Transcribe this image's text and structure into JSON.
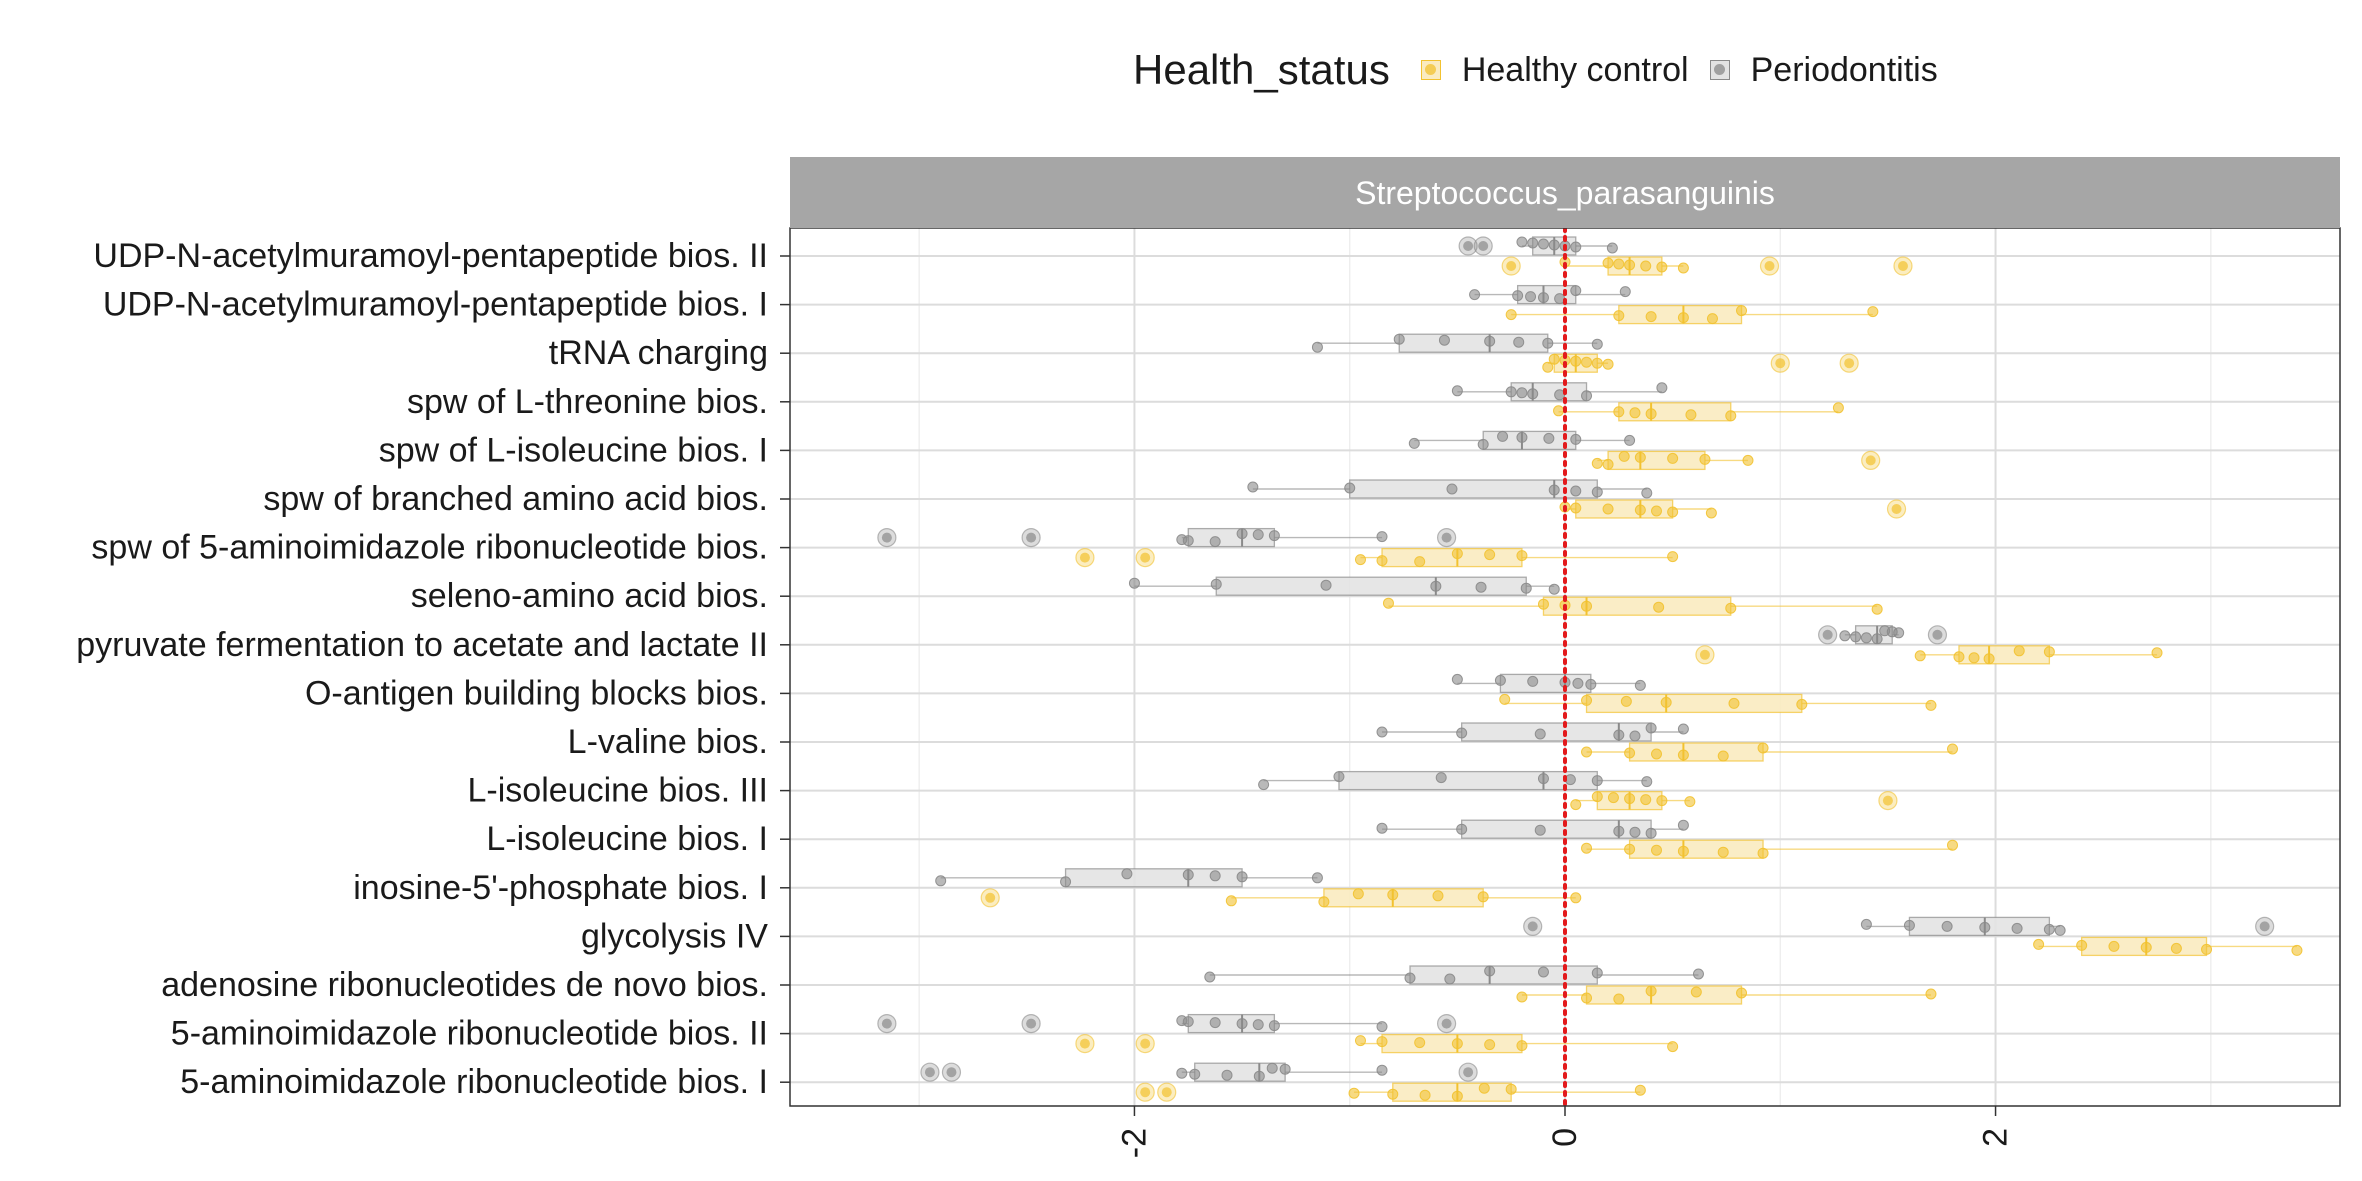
{
  "legend": {
    "title": "Health_status",
    "items": [
      {
        "label": "Healthy control",
        "color": "#F2C230",
        "box_fill": "#FAEBC0"
      },
      {
        "label": "Periodontitis",
        "color": "#8A8A8A",
        "box_fill": "#E3E3E3"
      }
    ]
  },
  "chart_data": {
    "type": "boxplot",
    "facet_title": "Streptococcus_parasanguinis",
    "xlim": [
      -3.6,
      3.6
    ],
    "x_ticks": [
      -2,
      0,
      2
    ],
    "x_tick_labels": [
      "-2",
      "0",
      "2"
    ],
    "reference_line": {
      "x": 0,
      "color": "#E31A1C",
      "style": "dotted"
    },
    "grid": true,
    "categories": [
      "UDP-N-acetylmuramoyl-pentapeptide bios. II",
      "UDP-N-acetylmuramoyl-pentapeptide bios. I",
      "tRNA charging",
      "spw of L-threonine bios.",
      "spw of L-isoleucine bios. I",
      "spw of branched amino acid bios.",
      "spw of 5-aminoimidazole ribonucleotide bios.",
      "seleno-amino acid bios.",
      "pyruvate fermentation to acetate and lactate II",
      "O-antigen building blocks bios.",
      "L-valine bios.",
      "L-isoleucine bios. III",
      "L-isoleucine bios. I",
      "inosine-5'-phosphate bios. I",
      "glycolysis IV",
      "adenosine ribonucleotides de novo bios.",
      "5-aminoimidazole ribonucleotide bios. II",
      "5-aminoimidazole ribonucleotide bios. I"
    ],
    "series": [
      {
        "name": "Healthy control",
        "boxes": [
          {
            "whisker_low": 0.0,
            "q1": 0.2,
            "median": 0.3,
            "q3": 0.45,
            "whisker_high": 0.55,
            "outliers": [
              -0.25,
              0.95,
              1.57
            ]
          },
          {
            "whisker_low": -0.25,
            "q1": 0.25,
            "median": 0.55,
            "q3": 0.82,
            "whisker_high": 1.43,
            "outliers": []
          },
          {
            "whisker_low": -0.08,
            "q1": -0.05,
            "median": 0.05,
            "q3": 0.15,
            "whisker_high": 0.2,
            "outliers": [
              1.0,
              1.32
            ]
          },
          {
            "whisker_low": -0.03,
            "q1": 0.25,
            "median": 0.4,
            "q3": 0.77,
            "whisker_high": 1.27,
            "outliers": []
          },
          {
            "whisker_low": 0.15,
            "q1": 0.2,
            "median": 0.35,
            "q3": 0.65,
            "whisker_high": 0.85,
            "outliers": [
              1.42
            ]
          },
          {
            "whisker_low": 0.0,
            "q1": 0.05,
            "median": 0.35,
            "q3": 0.5,
            "whisker_high": 0.68,
            "outliers": [
              1.54
            ]
          },
          {
            "whisker_low": -0.95,
            "q1": -0.85,
            "median": -0.5,
            "q3": -0.2,
            "whisker_high": 0.5,
            "outliers": [
              -2.23,
              -1.95
            ]
          },
          {
            "whisker_low": -0.82,
            "q1": -0.1,
            "median": 0.1,
            "q3": 0.77,
            "whisker_high": 1.45,
            "outliers": []
          },
          {
            "whisker_low": 1.65,
            "q1": 1.83,
            "median": 1.97,
            "q3": 2.25,
            "whisker_high": 2.75,
            "outliers": [
              0.65
            ]
          },
          {
            "whisker_low": -0.28,
            "q1": 0.1,
            "median": 0.47,
            "q3": 1.1,
            "whisker_high": 1.7,
            "outliers": []
          },
          {
            "whisker_low": 0.1,
            "q1": 0.3,
            "median": 0.55,
            "q3": 0.92,
            "whisker_high": 1.8,
            "outliers": []
          },
          {
            "whisker_low": 0.05,
            "q1": 0.15,
            "median": 0.3,
            "q3": 0.45,
            "whisker_high": 0.58,
            "outliers": [
              1.5
            ]
          },
          {
            "whisker_low": 0.1,
            "q1": 0.3,
            "median": 0.55,
            "q3": 0.92,
            "whisker_high": 1.8,
            "outliers": []
          },
          {
            "whisker_low": -1.55,
            "q1": -1.12,
            "median": -0.8,
            "q3": -0.38,
            "whisker_high": 0.05,
            "outliers": [
              -2.67
            ]
          },
          {
            "whisker_low": 2.2,
            "q1": 2.4,
            "median": 2.7,
            "q3": 2.98,
            "whisker_high": 3.4,
            "outliers": []
          },
          {
            "whisker_low": -0.2,
            "q1": 0.1,
            "median": 0.4,
            "q3": 0.82,
            "whisker_high": 1.7,
            "outliers": []
          },
          {
            "whisker_low": -0.95,
            "q1": -0.85,
            "median": -0.5,
            "q3": -0.2,
            "whisker_high": 0.5,
            "outliers": [
              -2.23,
              -1.95
            ]
          },
          {
            "whisker_low": -0.98,
            "q1": -0.8,
            "median": -0.5,
            "q3": -0.25,
            "whisker_high": 0.35,
            "outliers": [
              -1.95,
              -1.85
            ]
          }
        ]
      },
      {
        "name": "Periodontitis",
        "boxes": [
          {
            "whisker_low": -0.2,
            "q1": -0.15,
            "median": -0.05,
            "q3": 0.05,
            "whisker_high": 0.22,
            "outliers": [
              -0.45,
              -0.38
            ]
          },
          {
            "whisker_low": -0.42,
            "q1": -0.22,
            "median": -0.1,
            "q3": 0.05,
            "whisker_high": 0.28,
            "outliers": []
          },
          {
            "whisker_low": -1.15,
            "q1": -0.77,
            "median": -0.35,
            "q3": -0.08,
            "whisker_high": 0.15,
            "outliers": []
          },
          {
            "whisker_low": -0.5,
            "q1": -0.25,
            "median": -0.15,
            "q3": 0.1,
            "whisker_high": 0.45,
            "outliers": []
          },
          {
            "whisker_low": -0.7,
            "q1": -0.38,
            "median": -0.2,
            "q3": 0.05,
            "whisker_high": 0.3,
            "outliers": []
          },
          {
            "whisker_low": -1.45,
            "q1": -1.0,
            "median": -0.05,
            "q3": 0.15,
            "whisker_high": 0.38,
            "outliers": []
          },
          {
            "whisker_low": -1.78,
            "q1": -1.75,
            "median": -1.5,
            "q3": -1.35,
            "whisker_high": -0.85,
            "outliers": [
              -3.15,
              -2.48,
              -0.55
            ]
          },
          {
            "whisker_low": -2.0,
            "q1": -1.62,
            "median": -0.6,
            "q3": -0.18,
            "whisker_high": -0.05,
            "outliers": []
          },
          {
            "whisker_low": 1.3,
            "q1": 1.35,
            "median": 1.45,
            "q3": 1.52,
            "whisker_high": 1.55,
            "outliers": [
              1.22,
              1.73
            ]
          },
          {
            "whisker_low": -0.5,
            "q1": -0.3,
            "median": 0.0,
            "q3": 0.12,
            "whisker_high": 0.35,
            "outliers": []
          },
          {
            "whisker_low": -0.85,
            "q1": -0.48,
            "median": 0.25,
            "q3": 0.4,
            "whisker_high": 0.55,
            "outliers": []
          },
          {
            "whisker_low": -1.4,
            "q1": -1.05,
            "median": -0.1,
            "q3": 0.15,
            "whisker_high": 0.38,
            "outliers": []
          },
          {
            "whisker_low": -0.85,
            "q1": -0.48,
            "median": 0.25,
            "q3": 0.4,
            "whisker_high": 0.55,
            "outliers": []
          },
          {
            "whisker_low": -2.9,
            "q1": -2.32,
            "median": -1.75,
            "q3": -1.5,
            "whisker_high": -1.15,
            "outliers": []
          },
          {
            "whisker_low": 1.4,
            "q1": 1.6,
            "median": 1.95,
            "q3": 2.25,
            "whisker_high": 2.3,
            "outliers": [
              -0.15,
              3.25
            ]
          },
          {
            "whisker_low": -1.65,
            "q1": -0.72,
            "median": -0.35,
            "q3": 0.15,
            "whisker_high": 0.62,
            "outliers": []
          },
          {
            "whisker_low": -1.78,
            "q1": -1.75,
            "median": -1.5,
            "q3": -1.35,
            "whisker_high": -0.85,
            "outliers": [
              -3.15,
              -2.48,
              -0.55
            ]
          },
          {
            "whisker_low": -1.78,
            "q1": -1.72,
            "median": -1.42,
            "q3": -1.3,
            "whisker_high": -0.85,
            "outliers": [
              -2.95,
              -2.85,
              -0.45
            ]
          }
        ]
      }
    ]
  }
}
